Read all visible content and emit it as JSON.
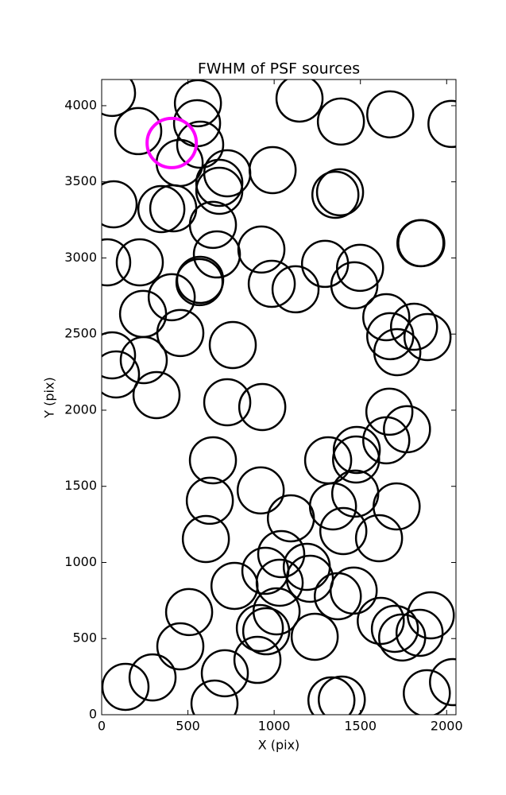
{
  "chart_data": {
    "type": "scatter",
    "title": "FWHM of PSF sources",
    "x_label": "X (pix)",
    "y_label": "Y (pix)",
    "xlim": [
      0,
      2054
    ],
    "ylim": [
      0,
      4172
    ],
    "xticks": [
      0,
      500,
      1000,
      1500,
      2000
    ],
    "yticks": [
      0,
      500,
      1000,
      1500,
      2000,
      2500,
      3000,
      3500,
      4000
    ],
    "grid": false,
    "series": [
      {
        "color": "#000000",
        "x": [
          60,
          558,
          553,
          212,
          571,
          452,
          1147,
          1387,
          1673,
          2028,
          728,
          682,
          682,
          991,
          69,
          346,
          415,
          1382,
          1355,
          645,
          1848,
          1853,
          32,
          221,
          668,
          926,
          571,
          567,
          986,
          1124,
          1295,
          1498,
          1465,
          406,
          240,
          1650,
          1811,
          1889,
          1673,
          1714,
          456,
          60,
          760,
          244,
          83,
          318,
          728,
          931,
          1668,
          1770,
          1479,
          1475,
          1650,
          1313,
          645,
          922,
          1470,
          1341,
          1710,
          627,
          1097,
          1401,
          1608,
          604,
          1041,
          949,
          1189,
          1207,
          1032,
          770,
          1369,
          1461,
          507,
          1014,
          1908,
          1618,
          1700,
          1742,
          1843,
          917,
          954,
          1235,
          456,
          903,
          714,
          295,
          138,
          654,
          1332,
          1392,
          1885,
          2037
        ],
        "values": [
          4084,
          4016,
          3885,
          3833,
          3744,
          3624,
          4047,
          3896,
          3943,
          3880,
          3556,
          3493,
          3441,
          3577,
          3352,
          3321,
          3326,
          3431,
          3415,
          3217,
          3097,
          3097,
          2971,
          2971,
          3023,
          3055,
          2856,
          2841,
          2830,
          2794,
          2961,
          2935,
          2820,
          2742,
          2632,
          2611,
          2548,
          2480,
          2486,
          2381,
          2507,
          2360,
          2428,
          2329,
          2235,
          2099,
          2052,
          2021,
          1990,
          1875,
          1739,
          1676,
          1802,
          1671,
          1671,
          1473,
          1452,
          1368,
          1368,
          1405,
          1290,
          1206,
          1159,
          1154,
          1055,
          945,
          971,
          893,
          867,
          846,
          778,
          815,
          674,
          679,
          653,
          616,
          564,
          507,
          538,
          569,
          548,
          512,
          449,
          360,
          272,
          245,
          183,
          73,
          94,
          99,
          141,
          214
        ]
      },
      {
        "color": "#ff00ff",
        "x": [
          406
        ],
        "values": [
          3755
        ]
      }
    ]
  }
}
